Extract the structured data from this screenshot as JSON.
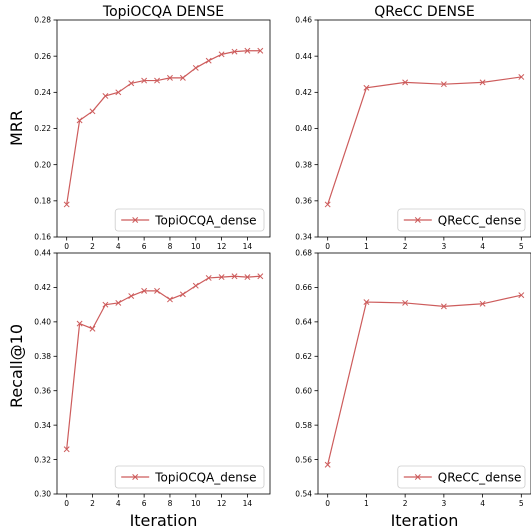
{
  "figure": {
    "row_labels": [
      "MRR",
      "Recall@10"
    ],
    "col_xlabel": "Iteration"
  },
  "colors": {
    "series": "#cd5c5c",
    "axis": "#000000",
    "legend_border": "#cccccc"
  },
  "chart_data": [
    {
      "type": "line",
      "title": "TopiOCQA DENSE",
      "xlabel": "",
      "ylabel": "MRR",
      "xlim": [
        -0.75,
        15.75
      ],
      "ylim": [
        0.16,
        0.28
      ],
      "xticks": [
        0,
        2,
        4,
        6,
        8,
        10,
        12,
        14
      ],
      "yticks": [
        0.16,
        0.18,
        0.2,
        0.22,
        0.24,
        0.26,
        0.28
      ],
      "ytick_labels": [
        "0.16",
        "0.18",
        "0.20",
        "0.22",
        "0.24",
        "0.26",
        "0.28"
      ],
      "legend_position": "lower-right",
      "series": [
        {
          "name": "TopiOCQA_dense",
          "x": [
            0,
            1,
            2,
            3,
            4,
            5,
            6,
            7,
            8,
            9,
            10,
            11,
            12,
            13,
            14,
            15
          ],
          "y": [
            0.178,
            0.2245,
            0.2295,
            0.238,
            0.24,
            0.245,
            0.2465,
            0.2465,
            0.248,
            0.248,
            0.2535,
            0.2575,
            0.261,
            0.2625,
            0.263,
            0.263
          ]
        }
      ]
    },
    {
      "type": "line",
      "title": "QReCC DENSE",
      "xlabel": "",
      "ylabel": "",
      "xlim": [
        -0.25,
        5.25
      ],
      "ylim": [
        0.34,
        0.46
      ],
      "xticks": [
        0,
        1,
        2,
        3,
        4,
        5
      ],
      "yticks": [
        0.34,
        0.36,
        0.38,
        0.4,
        0.42,
        0.44,
        0.46
      ],
      "ytick_labels": [
        "0.34",
        "0.36",
        "0.38",
        "0.40",
        "0.42",
        "0.44",
        "0.46"
      ],
      "legend_position": "lower-right",
      "series": [
        {
          "name": "QReCC_dense",
          "x": [
            0,
            1,
            2,
            3,
            4,
            5
          ],
          "y": [
            0.358,
            0.4225,
            0.4255,
            0.4245,
            0.4255,
            0.4285
          ]
        }
      ]
    },
    {
      "type": "line",
      "title": "",
      "xlabel": "Iteration",
      "ylabel": "Recall@10",
      "xlim": [
        -0.75,
        15.75
      ],
      "ylim": [
        0.3,
        0.44
      ],
      "xticks": [
        0,
        2,
        4,
        6,
        8,
        10,
        12,
        14
      ],
      "yticks": [
        0.3,
        0.32,
        0.34,
        0.36,
        0.38,
        0.4,
        0.42,
        0.44
      ],
      "ytick_labels": [
        "0.30",
        "0.32",
        "0.34",
        "0.36",
        "0.38",
        "0.40",
        "0.42",
        "0.44"
      ],
      "legend_position": "lower-right",
      "series": [
        {
          "name": "TopiOCQA_dense",
          "x": [
            0,
            1,
            2,
            3,
            4,
            5,
            6,
            7,
            8,
            9,
            10,
            11,
            12,
            13,
            14,
            15
          ],
          "y": [
            0.326,
            0.399,
            0.396,
            0.41,
            0.411,
            0.415,
            0.418,
            0.418,
            0.413,
            0.416,
            0.421,
            0.4255,
            0.426,
            0.4265,
            0.426,
            0.4265
          ]
        }
      ]
    },
    {
      "type": "line",
      "title": "",
      "xlabel": "Iteration",
      "ylabel": "",
      "xlim": [
        -0.25,
        5.25
      ],
      "ylim": [
        0.54,
        0.68
      ],
      "xticks": [
        0,
        1,
        2,
        3,
        4,
        5
      ],
      "yticks": [
        0.54,
        0.56,
        0.58,
        0.6,
        0.62,
        0.64,
        0.66,
        0.68
      ],
      "ytick_labels": [
        "0.54",
        "0.56",
        "0.58",
        "0.60",
        "0.62",
        "0.64",
        "0.66",
        "0.68"
      ],
      "legend_position": "lower-right",
      "series": [
        {
          "name": "QReCC_dense",
          "x": [
            0,
            1,
            2,
            3,
            4,
            5
          ],
          "y": [
            0.557,
            0.6515,
            0.651,
            0.649,
            0.6505,
            0.6555
          ]
        }
      ]
    }
  ]
}
